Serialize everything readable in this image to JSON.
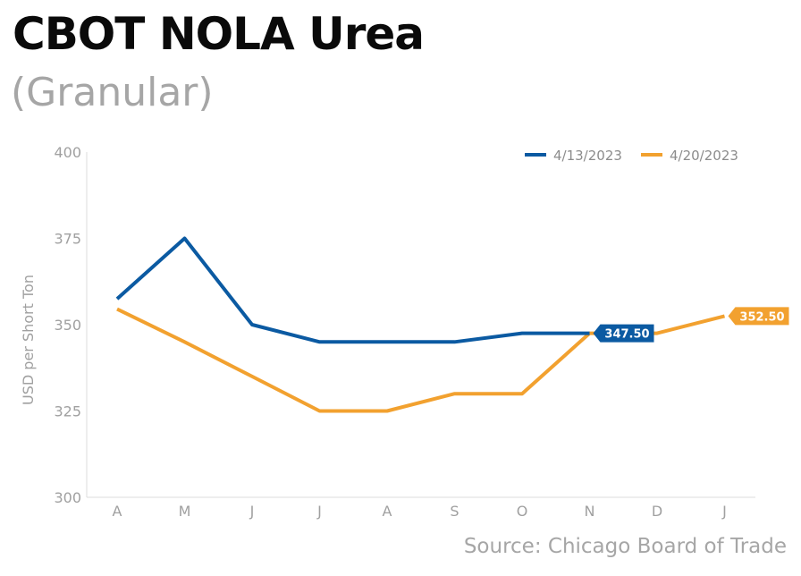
{
  "header": {
    "title": "CBOT NOLA Urea",
    "subtitle": "(Granular)",
    "source": "Source: Chicago Board of Trade"
  },
  "chart_data": {
    "type": "line",
    "title": "CBOT NOLA Urea",
    "subtitle": "(Granular)",
    "xlabel": "",
    "ylabel": "USD per Short Ton",
    "ylim": [
      300,
      400
    ],
    "yticks": [
      "400",
      "375",
      "350",
      "325",
      "300"
    ],
    "categories": [
      "A",
      "M",
      "J",
      "J",
      "A",
      "S",
      "O",
      "N",
      "D",
      "J"
    ],
    "grid": false,
    "legend_position": "top-right",
    "series": [
      {
        "name": "4/13/2023",
        "color": "#0b5aa2",
        "values": [
          357.5,
          375,
          350,
          345,
          345,
          345,
          347.5,
          347.5,
          null,
          null
        ],
        "end_label": "347.50"
      },
      {
        "name": "4/20/2023",
        "color": "#f2a12f",
        "values": [
          354.5,
          345,
          335,
          325,
          325,
          330,
          330,
          347.5,
          347.5,
          352.5
        ],
        "end_label": "352.50"
      }
    ]
  }
}
